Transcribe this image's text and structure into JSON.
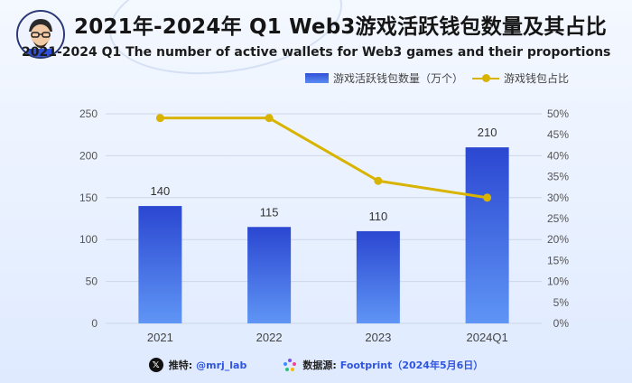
{
  "header": {
    "title": "2021年-2024年 Q1 Web3游戏活跃钱包数量及其占比",
    "subtitle": "2021-2024 Q1 The number of active wallets for Web3 games and their proportions",
    "avatar_icon": "cartoon-avatar-icon"
  },
  "legend": {
    "bar_label": "游戏活跃钱包数量（万个）",
    "line_label": "游戏钱包占比"
  },
  "chart_data": {
    "type": "bar",
    "categories": [
      "2021",
      "2022",
      "2023",
      "2024Q1"
    ],
    "series": [
      {
        "name": "游戏活跃钱包数量（万个）",
        "type": "bar",
        "axis": "left",
        "values": [
          140,
          115,
          110,
          210
        ],
        "data_labels": [
          "140",
          "115",
          "110",
          "210"
        ]
      },
      {
        "name": "游戏钱包占比",
        "type": "line",
        "axis": "right",
        "values": [
          49,
          49,
          34,
          30
        ]
      }
    ],
    "left_axis": {
      "ylim": [
        0,
        250
      ],
      "ticks": [
        "0",
        "50",
        "100",
        "150",
        "200",
        "250"
      ]
    },
    "right_axis": {
      "ylim": [
        0,
        50
      ],
      "ticks": [
        "0%",
        "5%",
        "10%",
        "15%",
        "20%",
        "25%",
        "30%",
        "35%",
        "40%",
        "45%",
        "50%"
      ]
    },
    "grid": true,
    "legend_position": "top-right",
    "colors": {
      "bar_top": "#2b47d1",
      "bar_bottom": "#5f95f5",
      "line": "#d8b400",
      "grid": "#ccd6e8"
    }
  },
  "footer": {
    "twitter_label": "推特:",
    "twitter_value": "@mrj_lab",
    "twitter_icon": "x-icon",
    "source_label": "数据源:",
    "source_value": "Footprint（2024年5月6日）",
    "source_icon": "footprint-icon"
  }
}
